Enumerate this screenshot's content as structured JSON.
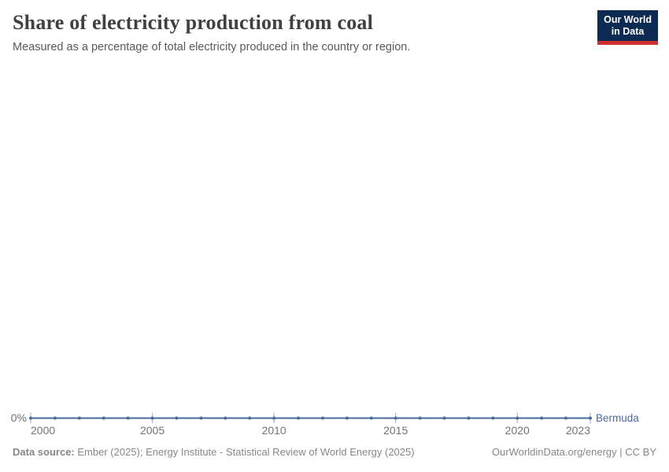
{
  "header": {
    "title": "Share of electricity production from coal",
    "subtitle": "Measured as a percentage of total electricity produced in the country or region.",
    "logo": {
      "line1": "Our World",
      "line2": "in Data",
      "bg_color": "#0d2b52",
      "bar_color": "#cf3130"
    }
  },
  "chart_data": {
    "type": "line",
    "title": "Share of electricity production from coal",
    "xlabel": "",
    "ylabel": "",
    "x": [
      2000,
      2001,
      2002,
      2003,
      2004,
      2005,
      2006,
      2007,
      2008,
      2009,
      2010,
      2011,
      2012,
      2013,
      2014,
      2015,
      2016,
      2017,
      2018,
      2019,
      2020,
      2021,
      2022,
      2023
    ],
    "series": [
      {
        "name": "Bermuda",
        "color": "#4C6A9C",
        "unit": "%",
        "values": [
          0,
          0,
          0,
          0,
          0,
          0,
          0,
          0,
          0,
          0,
          0,
          0,
          0,
          0,
          0,
          0,
          0,
          0,
          0,
          0,
          0,
          0,
          0,
          0
        ]
      }
    ],
    "x_ticks": [
      2000,
      2005,
      2010,
      2015,
      2020,
      2023
    ],
    "y_ticks": [
      {
        "value": 0,
        "label": "0%"
      }
    ],
    "xlim": [
      2000,
      2023
    ],
    "ylim": [
      0,
      0
    ],
    "grid": false,
    "legend": "end-of-line label",
    "colors": {
      "axis_text": "#737373",
      "tick_mark": "#b9c3d6"
    }
  },
  "footer": {
    "datasource_label": "Data source:",
    "datasource_text": " Ember (2025); Energy Institute - Statistical Review of World Energy (2025)",
    "rights": "OurWorldinData.org/energy | CC BY"
  }
}
